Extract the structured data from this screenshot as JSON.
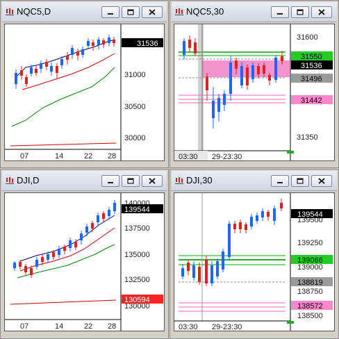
{
  "windows": [
    {
      "id": "nqc5-d",
      "title": "NQC5,D",
      "x_labels": [
        "07",
        "14",
        "22",
        "28"
      ],
      "y_ticks": [
        "31000",
        "30500",
        "30000"
      ],
      "price_labels": [
        {
          "text": "31536",
          "bg": "#000000",
          "fg": "#ffffff"
        }
      ]
    },
    {
      "id": "nqc5-30",
      "title": "NQC5,30",
      "x_labels": [
        "03:30",
        "29-23:30"
      ],
      "y_ticks": [
        "31600",
        "31350"
      ],
      "price_labels": [
        {
          "text": "31550",
          "bg": "#22cc22",
          "fg": "#000000"
        },
        {
          "text": "31536",
          "bg": "#000000",
          "fg": "#ffffff"
        },
        {
          "text": "31496",
          "bg": "#9a9a9a",
          "fg": "#000000"
        },
        {
          "text": "31442",
          "bg": "#ff88cc",
          "fg": "#000000"
        }
      ]
    },
    {
      "id": "dji-d",
      "title": "DJI,D",
      "x_labels": [
        "07",
        "14",
        "22",
        "28"
      ],
      "y_ticks": [
        "140000",
        "137500",
        "135000",
        "132500",
        "130000"
      ],
      "price_labels": [
        {
          "text": "139544",
          "bg": "#000000",
          "fg": "#ffffff"
        },
        {
          "text": "130594",
          "bg": "#ff2222",
          "fg": "#ffffff"
        }
      ]
    },
    {
      "id": "dji-30",
      "title": "DJI,30",
      "x_labels": [
        "03:30",
        "29-23:30"
      ],
      "y_ticks": [
        "139500",
        "139250",
        "139000",
        "138750",
        "138500"
      ],
      "price_labels": [
        {
          "text": "139544",
          "bg": "#000000",
          "fg": "#ffffff"
        },
        {
          "text": "139066",
          "bg": "#22cc22",
          "fg": "#000000"
        },
        {
          "text": "138819",
          "bg": "#9a9a9a",
          "fg": "#000000"
        },
        {
          "text": "138572",
          "bg": "#ff88cc",
          "fg": "#000000"
        }
      ]
    }
  ],
  "colors": {
    "up_candle": "#1a66ff",
    "down_candle": "#dd2222",
    "ma_fast": "#000080",
    "ma_mid": "#cc0000",
    "ma_slow": "#008000",
    "zone_pink": "#ee66bb",
    "level_green": "#00aa00",
    "level_gray": "#888888"
  },
  "icons": [
    "chart-app-icon",
    "minimize-icon",
    "maximize-icon",
    "close-icon"
  ]
}
